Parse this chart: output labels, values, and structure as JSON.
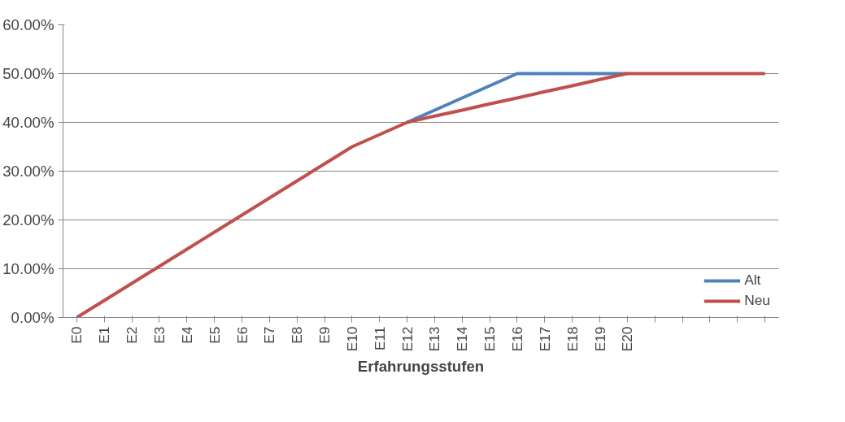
{
  "chart_data": {
    "type": "line",
    "xlabel": "Erfahrungsstufen",
    "categories": [
      "E0",
      "E1",
      "E2",
      "E3",
      "E4",
      "E5",
      "E6",
      "E7",
      "E8",
      "E9",
      "E10",
      "E11",
      "E12",
      "E13",
      "E14",
      "E15",
      "E16",
      "E17",
      "E18",
      "E19",
      "E20",
      null,
      null,
      null,
      null,
      null
    ],
    "series": [
      {
        "name": "Alt",
        "color": "#4f81bd",
        "values": [
          null,
          null,
          null,
          null,
          null,
          null,
          null,
          null,
          null,
          null,
          null,
          null,
          40,
          42.5,
          45,
          47.5,
          50,
          50,
          50,
          50,
          50,
          null,
          null,
          null,
          null,
          null
        ]
      },
      {
        "name": "Neu",
        "color": "#c0504d",
        "values": [
          0,
          3.5,
          7,
          10.5,
          14,
          17.5,
          21,
          24.5,
          28,
          31.5,
          35,
          37.5,
          40,
          41.3,
          42.5,
          43.8,
          45,
          46.3,
          47.5,
          48.8,
          50,
          50,
          50,
          50,
          50,
          50
        ]
      }
    ],
    "ylim": [
      0,
      60
    ],
    "yticks": [
      {
        "value": 0,
        "label": "0.00%"
      },
      {
        "value": 10,
        "label": "10.00%"
      },
      {
        "value": 20,
        "label": "20.00%"
      },
      {
        "value": 30,
        "label": "30.00%"
      },
      {
        "value": 40,
        "label": "40.00%"
      },
      {
        "value": 50,
        "label": "50.00%"
      },
      {
        "value": 60,
        "label": "60.00%"
      }
    ],
    "grid": "y",
    "legend": "bottom right",
    "marker": "none",
    "line_style": "solid"
  }
}
